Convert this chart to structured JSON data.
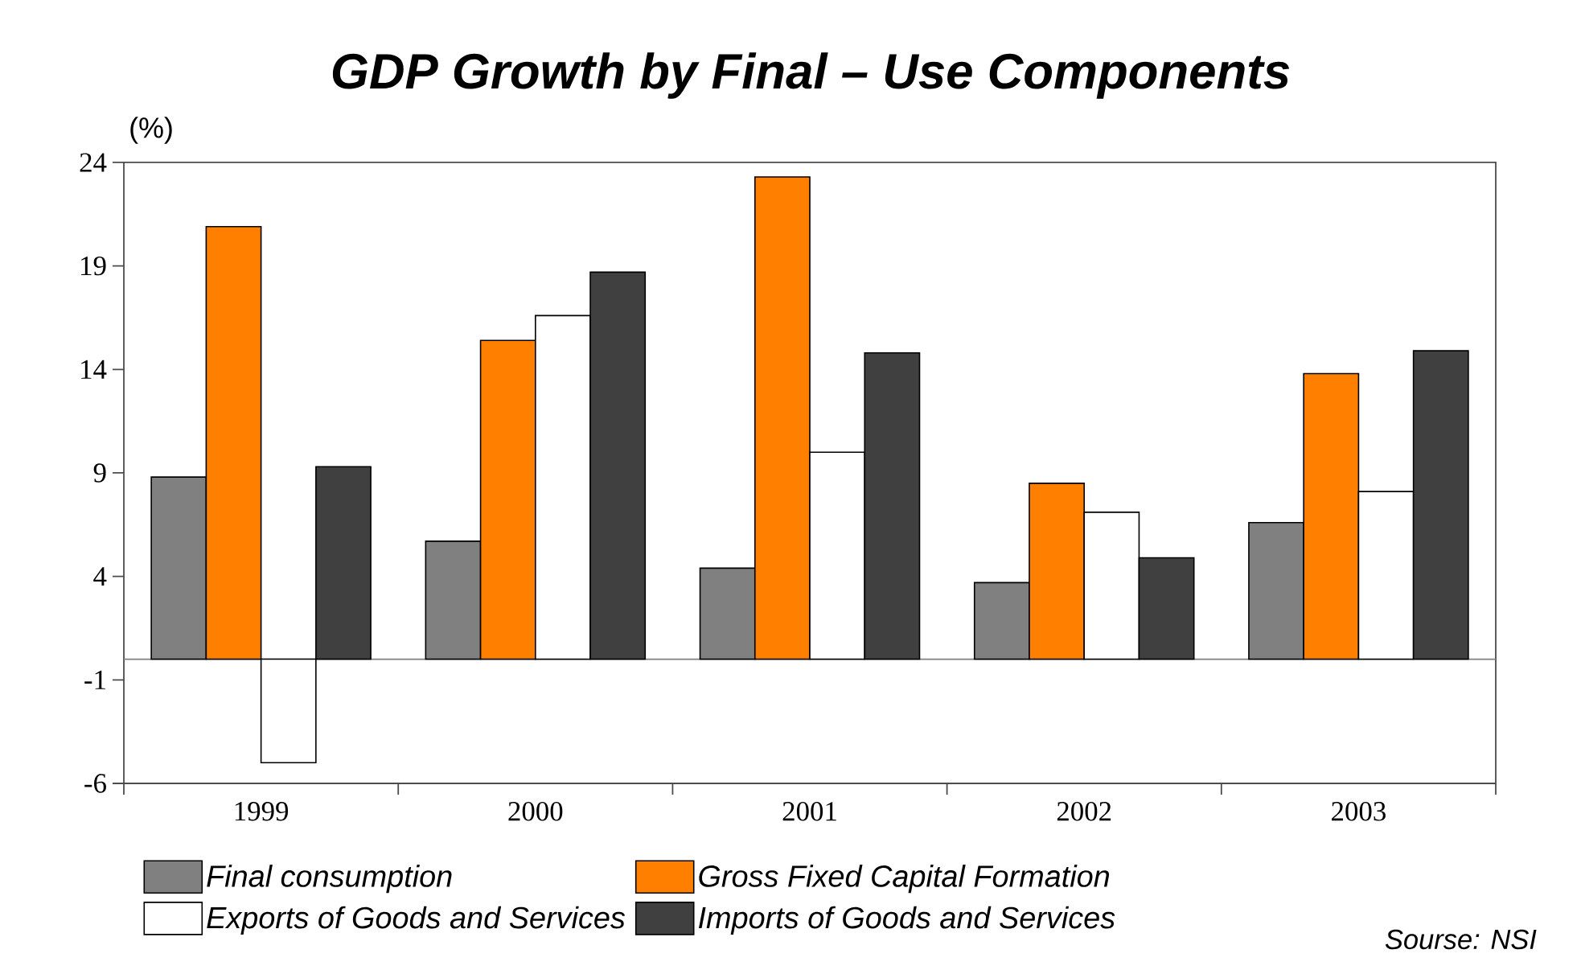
{
  "chart_data": {
    "type": "bar",
    "title": "GDP Growth by Final – Use Components",
    "ylabel": "(%)",
    "categories": [
      "1999",
      "2000",
      "2001",
      "2002",
      "2003"
    ],
    "series": [
      {
        "name": "Final consumption",
        "color": "#808080",
        "values": [
          8.8,
          5.7,
          4.4,
          3.7,
          6.6
        ]
      },
      {
        "name": "Gross Fixed Capital Formation",
        "color": "#ff8000",
        "values": [
          20.9,
          15.4,
          23.3,
          8.5,
          13.8
        ]
      },
      {
        "name": "Exports of Goods and Services",
        "color": "#ffffff",
        "values": [
          -5.0,
          16.6,
          10.0,
          7.1,
          8.1
        ]
      },
      {
        "name": "Imports of Goods and Services",
        "color": "#404040",
        "values": [
          9.3,
          18.7,
          14.8,
          4.9,
          14.9
        ]
      }
    ],
    "ylim": [
      -6,
      24
    ],
    "yticks": [
      -6,
      -1,
      4,
      9,
      14,
      19,
      24
    ],
    "ref_lines": [
      {
        "axis": "y",
        "value": 0,
        "color": "#808080"
      }
    ],
    "legend": "bottom",
    "annotations": [
      "Sourse: NSI"
    ]
  }
}
